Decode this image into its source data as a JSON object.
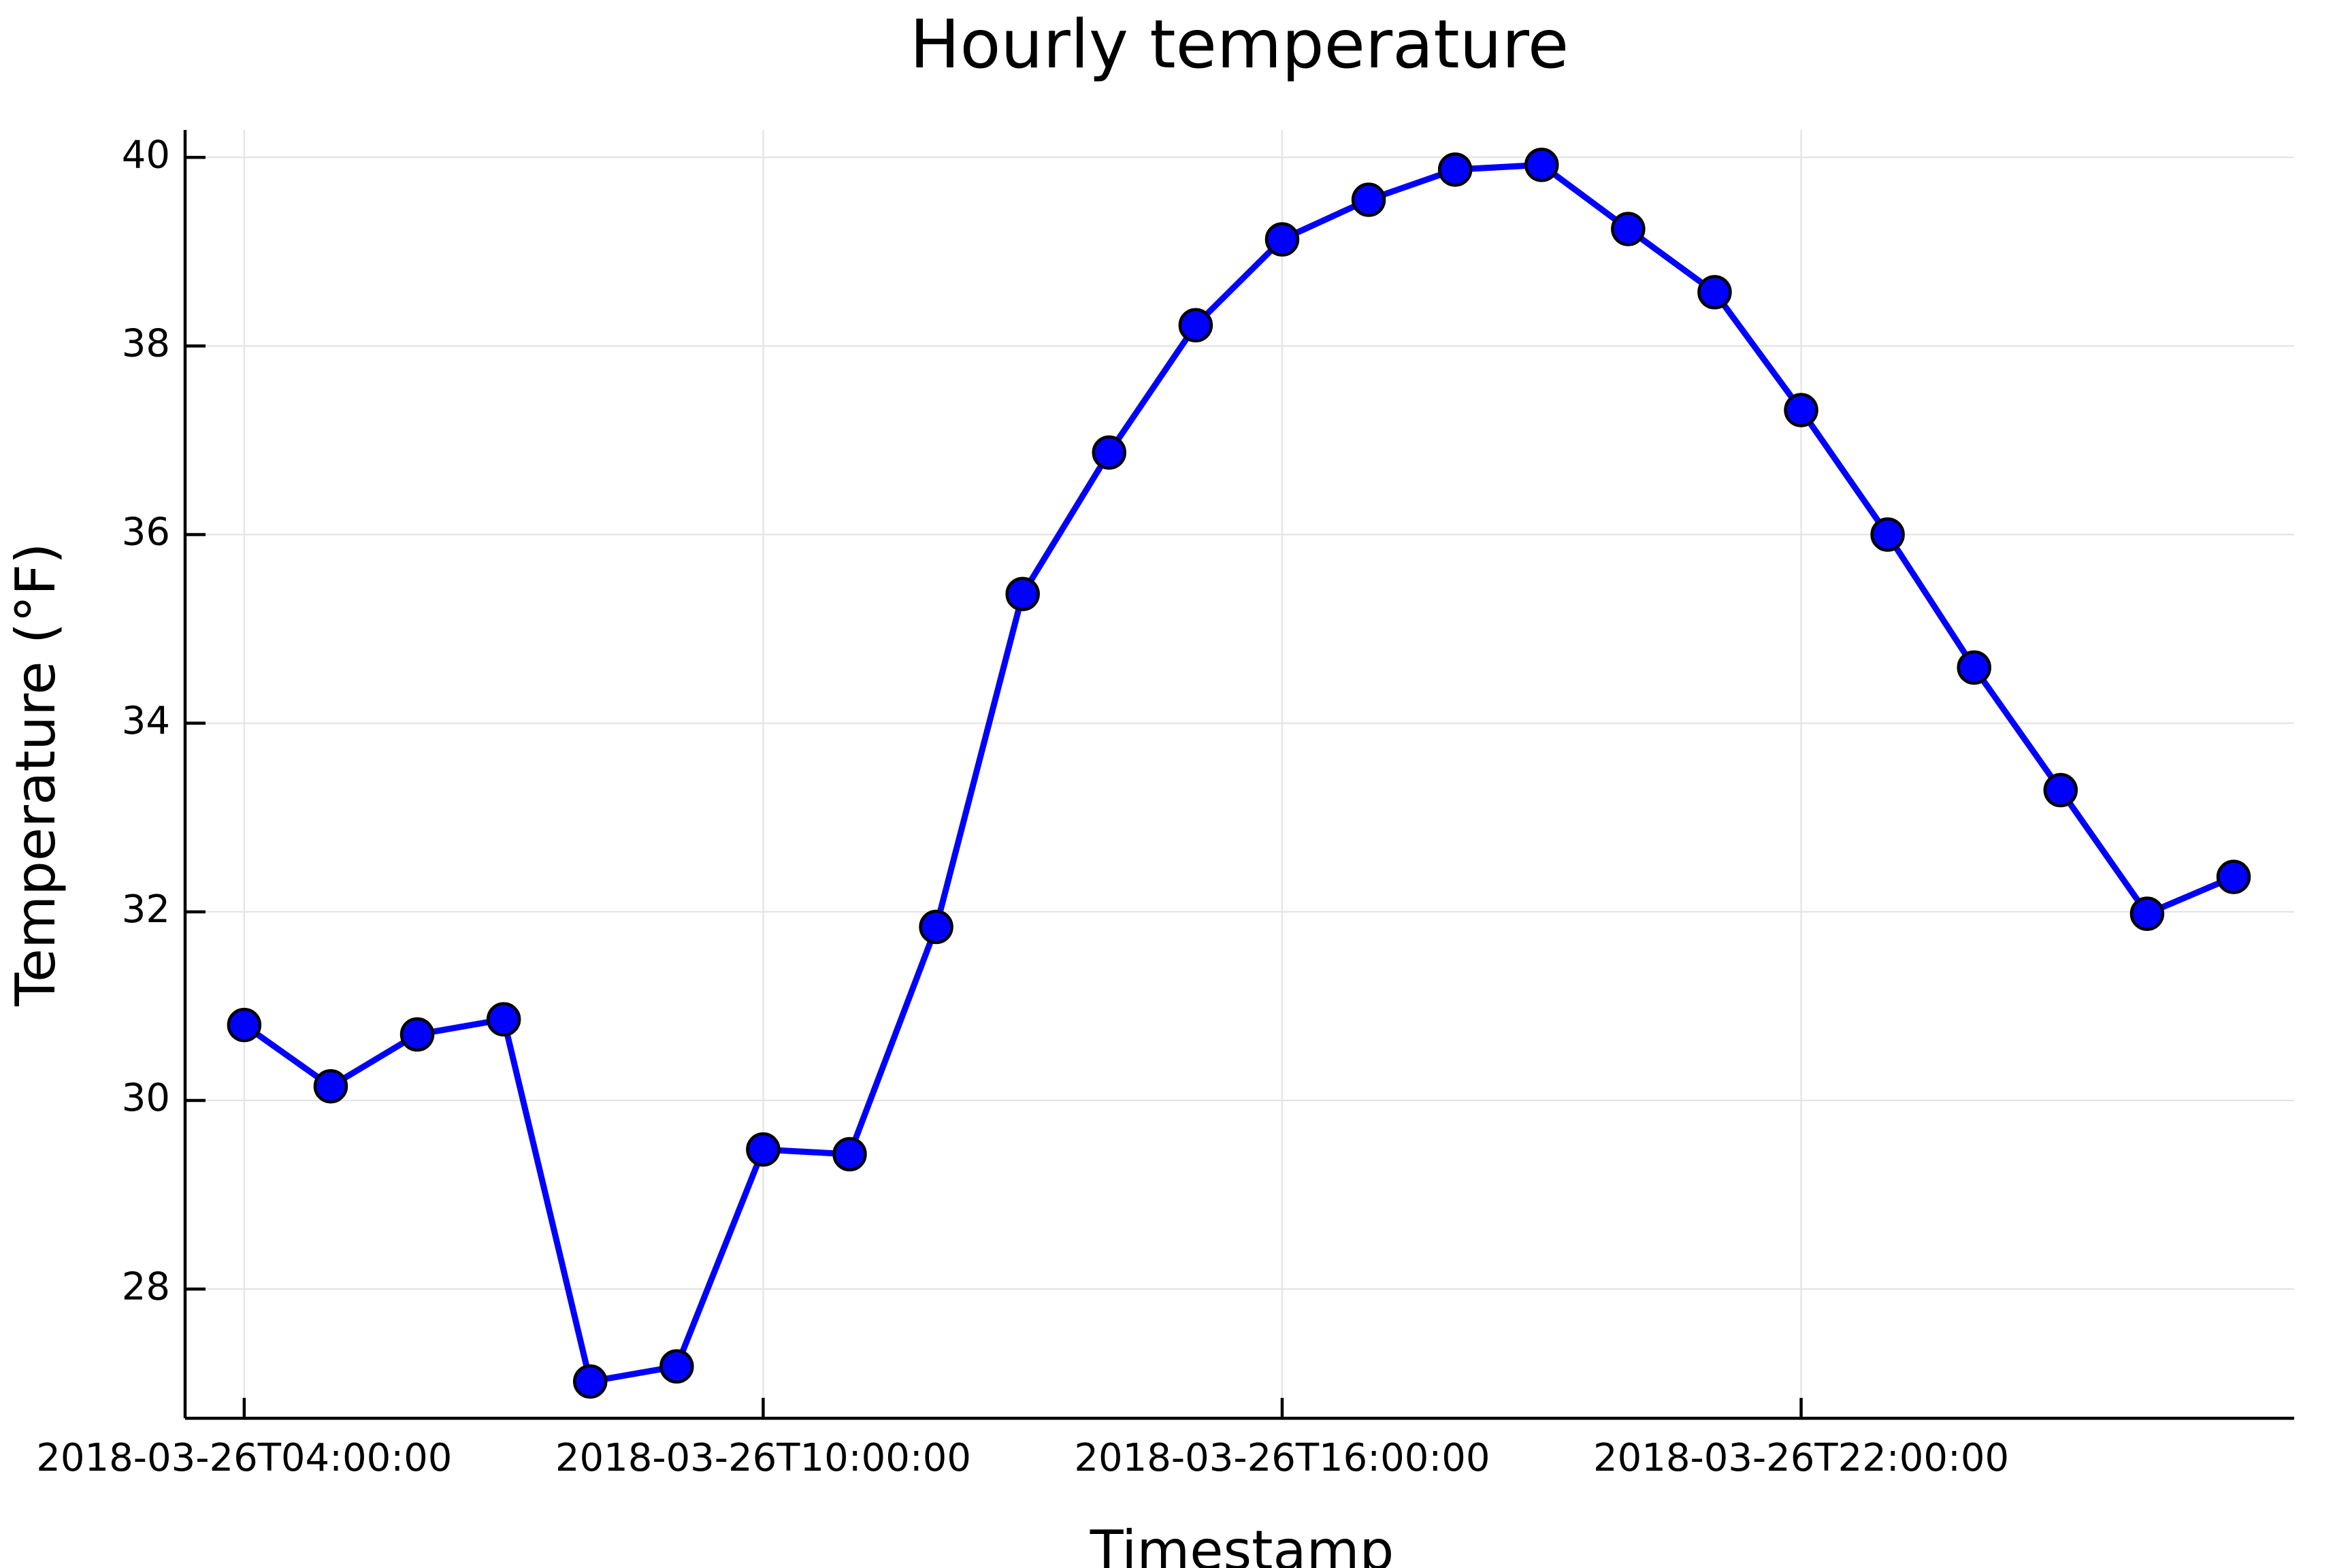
{
  "chart_data": {
    "type": "line",
    "title": "Hourly temperature",
    "x_label": "Timestamp",
    "y_label": "Temperature (°F)",
    "x": [
      "2018-03-26T04:00:00",
      "2018-03-26T05:00:00",
      "2018-03-26T06:00:00",
      "2018-03-26T07:00:00",
      "2018-03-26T08:00:00",
      "2018-03-26T09:00:00",
      "2018-03-26T10:00:00",
      "2018-03-26T11:00:00",
      "2018-03-26T12:00:00",
      "2018-03-26T13:00:00",
      "2018-03-26T14:00:00",
      "2018-03-26T15:00:00",
      "2018-03-26T16:00:00",
      "2018-03-26T17:00:00",
      "2018-03-26T18:00:00",
      "2018-03-26T19:00:00",
      "2018-03-26T20:00:00",
      "2018-03-26T21:00:00",
      "2018-03-26T22:00:00",
      "2018-03-26T23:00:00",
      "2018-03-27T00:00:00",
      "2018-03-27T01:00:00",
      "2018-03-27T02:00:00",
      "2018-03-27T03:00:00"
    ],
    "series": [
      {
        "name": "Temperature",
        "color": "#0000ff",
        "values": [
          30.8,
          30.15,
          30.7,
          30.86,
          27.02,
          27.18,
          29.48,
          29.43,
          31.84,
          35.37,
          36.87,
          38.22,
          39.13,
          39.55,
          39.87,
          39.92,
          39.24,
          38.57,
          37.32,
          36.0,
          34.59,
          33.29,
          31.98,
          32.37
        ]
      }
    ],
    "xlim": [
      "2018-03-26T03:19:00",
      "2018-03-27T03:42:00"
    ],
    "xticks": [
      "2018-03-26T04:00:00",
      "2018-03-26T10:00:00",
      "2018-03-26T16:00:00",
      "2018-03-26T22:00:00"
    ],
    "ylim": [
      26.63,
      40.29
    ],
    "yticks": [
      28,
      30,
      32,
      34,
      36,
      38,
      40
    ],
    "grid": true
  }
}
